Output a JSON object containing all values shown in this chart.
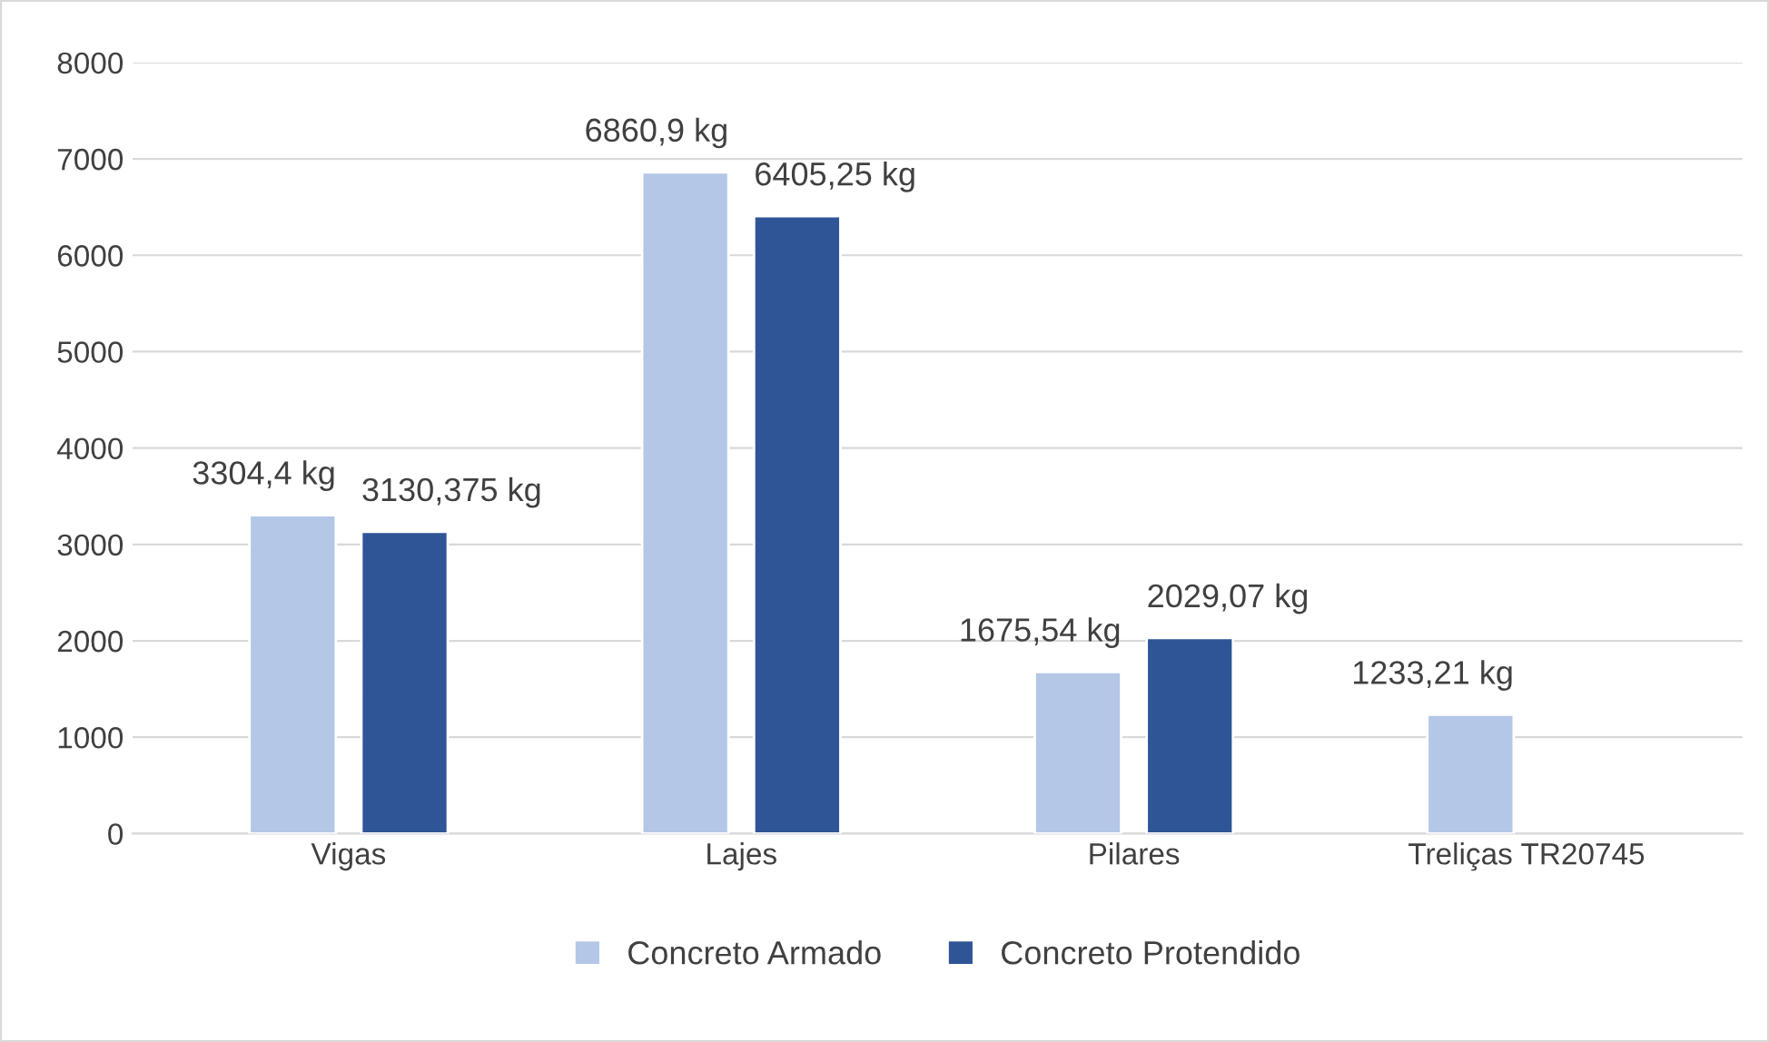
{
  "chart_data": {
    "type": "bar",
    "categories": [
      "Vigas",
      "Lajes",
      "Pilares",
      "Treliças TR20745"
    ],
    "series": [
      {
        "name": "Concreto Armado",
        "color": "#b4c7e7",
        "values": [
          3304.4,
          6860.9,
          1675.54,
          1233.21
        ],
        "value_labels": [
          "3304,4 kg",
          "6860,9 kg",
          "1675,54 kg",
          "1233,21 kg"
        ]
      },
      {
        "name": "Concreto Protendido",
        "color": "#2f5597",
        "values": [
          3130.375,
          6405.25,
          2029.07,
          null
        ],
        "value_labels": [
          "3130,375 kg",
          "6405,25 kg",
          "2029,07 kg",
          null
        ]
      }
    ],
    "ylim": [
      0,
      8000
    ],
    "yticks": [
      0,
      1000,
      2000,
      3000,
      4000,
      5000,
      6000,
      7000,
      8000
    ],
    "grid": "y",
    "legend": "bottom"
  }
}
